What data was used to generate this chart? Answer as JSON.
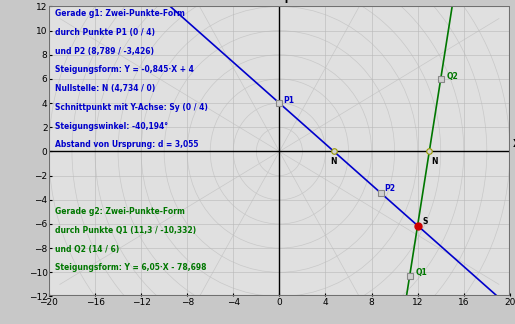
{
  "bg_color": "#c8c8c8",
  "plot_bg_color": "#e0e0e0",
  "grid_color": "#b8b8b8",
  "xlim": [
    -20,
    20
  ],
  "ylim": [
    -12,
    12
  ],
  "xticks": [
    -20,
    -16,
    -12,
    -8,
    -4,
    0,
    4,
    8,
    12,
    16,
    20
  ],
  "yticks": [
    -12,
    -10,
    -8,
    -6,
    -4,
    -2,
    0,
    2,
    4,
    6,
    8,
    10,
    12
  ],
  "g1_slope": -0.845,
  "g1_intercept": 4.0,
  "g1_color": "#0000cc",
  "g1_label_lines": [
    "Gerade g1: Zwei-Punkte-Form",
    "durch Punkte P1 (0 / 4)",
    "und P2 (8,789 / -3,426)",
    "Steigungsform: Y = -0,845·X + 4",
    "Nullstelle: N (4,734 / 0)",
    "Schnittpunkt mit Y-Achse: Sy (0 / 4)",
    "Steigungswinkel: -40,194°",
    "Abstand von Ursprung: d = 3,055"
  ],
  "g2_slope": 6.05,
  "g2_intercept": -78.698,
  "g2_color": "#007700",
  "g2_label_lines": [
    "Gerade g2: Zwei-Punkte-Form",
    "durch Punkte Q1 (11,3 / -10,332)",
    "und Q2 (14 / 6)",
    "Steigungsform: Y = 6,05·X - 78,698"
  ],
  "P1": [
    0,
    4
  ],
  "P2": [
    8.789,
    -3.426
  ],
  "Q1": [
    11.3,
    -10.332
  ],
  "Q2": [
    14,
    6
  ],
  "N1": [
    4.734,
    0
  ],
  "N2": [
    13.0,
    0
  ],
  "S": [
    12.0,
    -6.14
  ],
  "intersection_color": "#cc0000",
  "radial_line_color": "#c8c8c8",
  "radial_circle_color": "#c8c8c8",
  "spoke_angles_deg": [
    0,
    30,
    60,
    90,
    120,
    150,
    180,
    210,
    240,
    270,
    300,
    330
  ],
  "circle_radii": [
    2,
    4,
    6,
    8,
    10,
    12,
    14,
    16,
    18,
    20
  ],
  "text_fontsize": 5.5,
  "tick_fontsize": 6.5
}
